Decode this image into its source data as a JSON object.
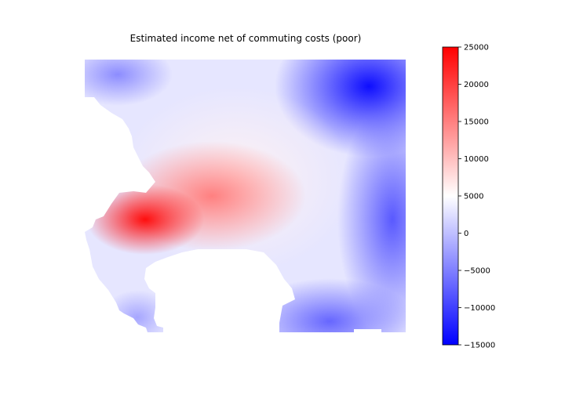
{
  "chart_data": {
    "type": "heatmap",
    "title": "Estimated income net of commuting costs (poor)",
    "xlabel": "",
    "ylabel": "",
    "axes_visible": false,
    "grid": false,
    "colormap": "bwr",
    "colormap_colors": [
      "#0000ff",
      "#ffffff",
      "#ff0000"
    ],
    "colorbar": {
      "position": "right",
      "range": [
        -15000,
        25000
      ],
      "ticks": [
        -15000,
        -10000,
        -5000,
        0,
        5000,
        10000,
        15000,
        20000,
        25000
      ],
      "tick_labels": [
        "−15000",
        "−10000",
        "−5000",
        "0",
        "5000",
        "10000",
        "15000",
        "20000",
        "25000"
      ]
    },
    "regions": [
      {
        "area": "north-east (top right)",
        "approx_value": -14000
      },
      {
        "area": "east edge",
        "approx_value": -8000
      },
      {
        "area": "south-east (bottom)",
        "approx_value": -7000
      },
      {
        "area": "north-west edge",
        "approx_value": -4000
      },
      {
        "area": "south-west tip",
        "approx_value": -2000
      },
      {
        "area": "center band",
        "approx_value": 6000
      },
      {
        "area": "central ridge",
        "approx_value": 15000
      },
      {
        "area": "west core",
        "approx_value": 24000
      }
    ]
  }
}
